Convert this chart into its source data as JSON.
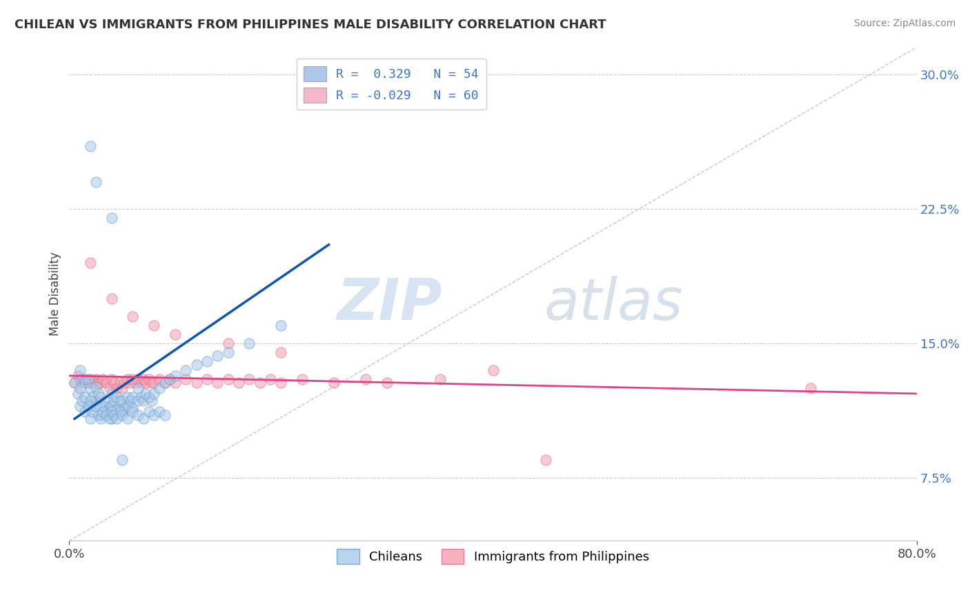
{
  "title": "CHILEAN VS IMMIGRANTS FROM PHILIPPINES MALE DISABILITY CORRELATION CHART",
  "source": "Source: ZipAtlas.com",
  "ylabel": "Male Disability",
  "yticks": [
    0.075,
    0.15,
    0.225,
    0.3
  ],
  "ytick_labels": [
    "7.5%",
    "15.0%",
    "22.5%",
    "30.0%"
  ],
  "xlim": [
    0.0,
    0.8
  ],
  "ylim": [
    0.04,
    0.315
  ],
  "legend_r_entries": [
    {
      "label": "R =  0.329   N = 54",
      "color": "#adc6ea"
    },
    {
      "label": "R = -0.029   N = 60",
      "color": "#f4b8c8"
    }
  ],
  "chilean_color": "#a8c8e8",
  "philippines_color": "#f4a0b0",
  "chilean_edge": "#6699cc",
  "philippines_edge": "#dd6688",
  "trend_blue": "#1155aa",
  "trend_pink": "#dd4488",
  "ref_line_color": "#bbbbbb",
  "watermark_zip": "ZIP",
  "watermark_atlas": "atlas",
  "background": "#ffffff",
  "chileans_x": [
    0.01,
    0.012,
    0.015,
    0.018,
    0.02,
    0.02,
    0.022,
    0.025,
    0.025,
    0.028,
    0.03,
    0.03,
    0.032,
    0.035,
    0.035,
    0.038,
    0.04,
    0.04,
    0.04,
    0.042,
    0.045,
    0.045,
    0.048,
    0.05,
    0.05,
    0.052,
    0.055,
    0.055,
    0.058,
    0.06,
    0.06,
    0.065,
    0.065,
    0.068,
    0.07,
    0.072,
    0.075,
    0.078,
    0.08,
    0.085,
    0.09,
    0.095,
    0.1,
    0.11,
    0.12,
    0.13,
    0.14,
    0.15,
    0.17,
    0.2,
    0.02,
    0.025,
    0.04,
    0.05
  ],
  "chileans_y": [
    0.135,
    0.13,
    0.128,
    0.13,
    0.115,
    0.125,
    0.12,
    0.118,
    0.126,
    0.122,
    0.11,
    0.12,
    0.115,
    0.112,
    0.118,
    0.115,
    0.108,
    0.115,
    0.122,
    0.118,
    0.113,
    0.12,
    0.118,
    0.112,
    0.118,
    0.114,
    0.115,
    0.12,
    0.118,
    0.114,
    0.12,
    0.118,
    0.125,
    0.12,
    0.118,
    0.122,
    0.12,
    0.118,
    0.122,
    0.125,
    0.128,
    0.13,
    0.132,
    0.135,
    0.138,
    0.14,
    0.143,
    0.145,
    0.15,
    0.16,
    0.26,
    0.24,
    0.22,
    0.085
  ],
  "chileans_x2": [
    0.005,
    0.008,
    0.01,
    0.01,
    0.012,
    0.015,
    0.015,
    0.018,
    0.02,
    0.02,
    0.022,
    0.025,
    0.028,
    0.03,
    0.032,
    0.035,
    0.038,
    0.04,
    0.042,
    0.045,
    0.048,
    0.05,
    0.055,
    0.06,
    0.065,
    0.07,
    0.075,
    0.08,
    0.085,
    0.09
  ],
  "chileans_y2": [
    0.128,
    0.122,
    0.115,
    0.125,
    0.118,
    0.112,
    0.12,
    0.115,
    0.108,
    0.118,
    0.112,
    0.115,
    0.11,
    0.108,
    0.112,
    0.11,
    0.108,
    0.112,
    0.11,
    0.108,
    0.112,
    0.11,
    0.108,
    0.112,
    0.11,
    0.108,
    0.112,
    0.11,
    0.112,
    0.11
  ],
  "philippines_x": [
    0.005,
    0.008,
    0.01,
    0.012,
    0.015,
    0.018,
    0.02,
    0.022,
    0.025,
    0.028,
    0.03,
    0.032,
    0.035,
    0.038,
    0.04,
    0.042,
    0.045,
    0.048,
    0.05,
    0.052,
    0.055,
    0.058,
    0.06,
    0.062,
    0.065,
    0.068,
    0.07,
    0.072,
    0.075,
    0.078,
    0.08,
    0.085,
    0.09,
    0.095,
    0.1,
    0.11,
    0.12,
    0.13,
    0.14,
    0.15,
    0.16,
    0.17,
    0.18,
    0.19,
    0.2,
    0.22,
    0.25,
    0.28,
    0.3,
    0.35,
    0.02,
    0.04,
    0.06,
    0.08,
    0.1,
    0.15,
    0.2,
    0.4,
    0.45,
    0.7
  ],
  "philippines_y": [
    0.128,
    0.132,
    0.13,
    0.128,
    0.13,
    0.128,
    0.13,
    0.128,
    0.13,
    0.128,
    0.128,
    0.13,
    0.128,
    0.125,
    0.13,
    0.128,
    0.125,
    0.128,
    0.125,
    0.128,
    0.13,
    0.128,
    0.13,
    0.128,
    0.13,
    0.128,
    0.13,
    0.128,
    0.13,
    0.128,
    0.128,
    0.13,
    0.128,
    0.13,
    0.128,
    0.13,
    0.128,
    0.13,
    0.128,
    0.13,
    0.128,
    0.13,
    0.128,
    0.13,
    0.128,
    0.13,
    0.128,
    0.13,
    0.128,
    0.13,
    0.195,
    0.175,
    0.165,
    0.16,
    0.155,
    0.15,
    0.145,
    0.135,
    0.085,
    0.125
  ],
  "blue_trend_x": [
    0.005,
    0.245
  ],
  "blue_trend_y": [
    0.108,
    0.205
  ],
  "pink_trend_x": [
    0.0,
    0.8
  ],
  "pink_trend_y": [
    0.132,
    0.122
  ],
  "ref_line_x": [
    0.0,
    0.8
  ],
  "ref_line_y": [
    0.04,
    0.315
  ]
}
